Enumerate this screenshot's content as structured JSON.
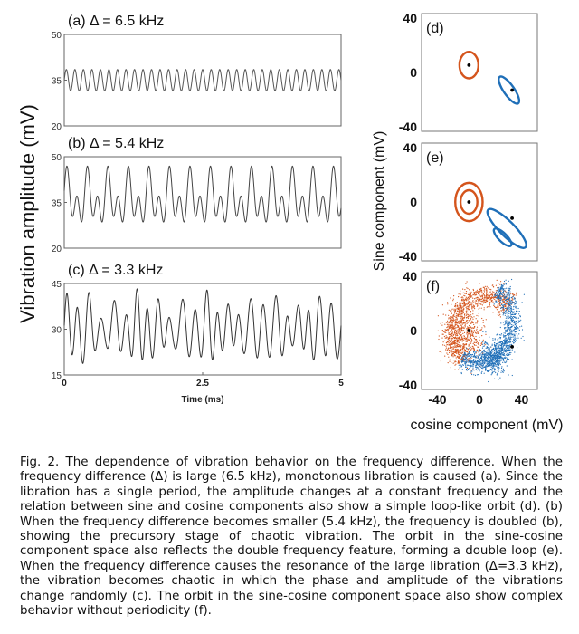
{
  "figure": {
    "left_ylabel": "Vibration amplitude (mV)",
    "right_ylabel": "Sine component (mV)",
    "right_xlabel": "cosine component (mV)"
  },
  "chart_data": [
    {
      "type": "line",
      "panel": "(a)",
      "title": "(a) Δ = 6.5 kHz",
      "xlim": [
        0,
        5
      ],
      "ylim": [
        20,
        50
      ],
      "yticks": [
        "50",
        "35",
        "20"
      ],
      "xlabel": "",
      "signal": {
        "mean": 35,
        "amplitude": 3.5,
        "frequency_khz": 6.5
      },
      "line_color": "#555555"
    },
    {
      "type": "line",
      "panel": "(b)",
      "title": "(b) Δ = 5.4 kHz",
      "xlim": [
        0,
        5
      ],
      "ylim": [
        20,
        50
      ],
      "yticks": [
        "50",
        "35",
        "20"
      ],
      "xlabel": "",
      "signal": {
        "mean": 36,
        "components": [
          {
            "amplitude": 6,
            "frequency_khz": 5.4
          },
          {
            "amplitude": 5,
            "frequency_khz": 2.7
          }
        ]
      },
      "line_color": "#444444"
    },
    {
      "type": "line",
      "panel": "(c)",
      "title": "(c) Δ = 3.3 kHz",
      "xlim": [
        0,
        5
      ],
      "ylim": [
        15,
        45
      ],
      "yticks": [
        "45",
        "30",
        "15"
      ],
      "xticks": [
        "0",
        "2.5",
        "5"
      ],
      "xlabel": "Time (ms)",
      "signal": {
        "mean": 30,
        "chaotic": true,
        "frequency_khz": 4.8,
        "amplitude_range": [
          5,
          11
        ]
      },
      "line_color": "#333333"
    },
    {
      "type": "scatter",
      "panel": "(d)",
      "label": "(d)",
      "xlim": [
        -55,
        55
      ],
      "ylim": [
        -40,
        40
      ],
      "yticks": [
        "40",
        "0",
        "-40"
      ],
      "series": [
        {
          "kind": "orbit",
          "center": [
            -10,
            5
          ],
          "radii": [
            [
              9,
              9
            ]
          ],
          "color": "#d4541c"
        },
        {
          "kind": "orbit",
          "center": [
            28,
            -12
          ],
          "radii": [
            [
              5,
              11
            ]
          ],
          "tilt_deg": -35,
          "color": "#1f6fb8"
        }
      ],
      "centers": [
        [
          -10,
          5
        ],
        [
          31,
          -12
        ]
      ]
    },
    {
      "type": "scatter",
      "panel": "(e)",
      "label": "(e)",
      "xlim": [
        -55,
        55
      ],
      "ylim": [
        -40,
        40
      ],
      "yticks": [
        "40",
        "0",
        "-40"
      ],
      "series": [
        {
          "kind": "orbit",
          "center": [
            -10,
            0
          ],
          "radii": [
            [
              8,
              8
            ],
            [
              13,
              13
            ]
          ],
          "color": "#d4541c"
        },
        {
          "kind": "orbit",
          "center": [
            26,
            -18
          ],
          "radii": [
            [
              7,
              18
            ],
            [
              4,
              8
            ]
          ],
          "tilt_deg": -45,
          "color": "#1f6fb8"
        }
      ],
      "centers": [
        [
          -10,
          0
        ],
        [
          31,
          -11
        ]
      ]
    },
    {
      "type": "scatter",
      "panel": "(f)",
      "label": "(f)",
      "xlim": [
        -55,
        55
      ],
      "ylim": [
        -40,
        40
      ],
      "yticks": [
        "40",
        "0",
        "-40"
      ],
      "xticks": [
        "-40",
        "0",
        "40"
      ],
      "series": [
        {
          "kind": "cloud",
          "color": "#d4541c",
          "count": 1500
        },
        {
          "kind": "cloud",
          "color": "#1f6fb8",
          "count": 1500
        }
      ],
      "centers": [
        [
          -10,
          0
        ],
        [
          31,
          -11
        ]
      ]
    }
  ],
  "caption": "Fig. 2. The dependence of vibration behavior on the frequency difference. When the frequency difference (Δ) is large (6.5 kHz), monotonous libration is caused (a). Since the libration has a single period, the amplitude changes at a constant frequency and the relation between sine and cosine components also show a simple loop-like orbit (d). (b) When the frequency difference becomes smaller (5.4 kHz), the frequency is doubled (b), showing the precursory stage of chaotic vibration. The orbit in the sine-cosine component space also reflects the double frequency feature, forming a double loop (e). When the frequency difference causes the resonance of the large libration (Δ=3.3 kHz), the vibration becomes chaotic in which the phase and amplitude of the vibrations change randomly (c). The orbit in the sine-cosine component space also show complex behavior without periodicity (f)."
}
